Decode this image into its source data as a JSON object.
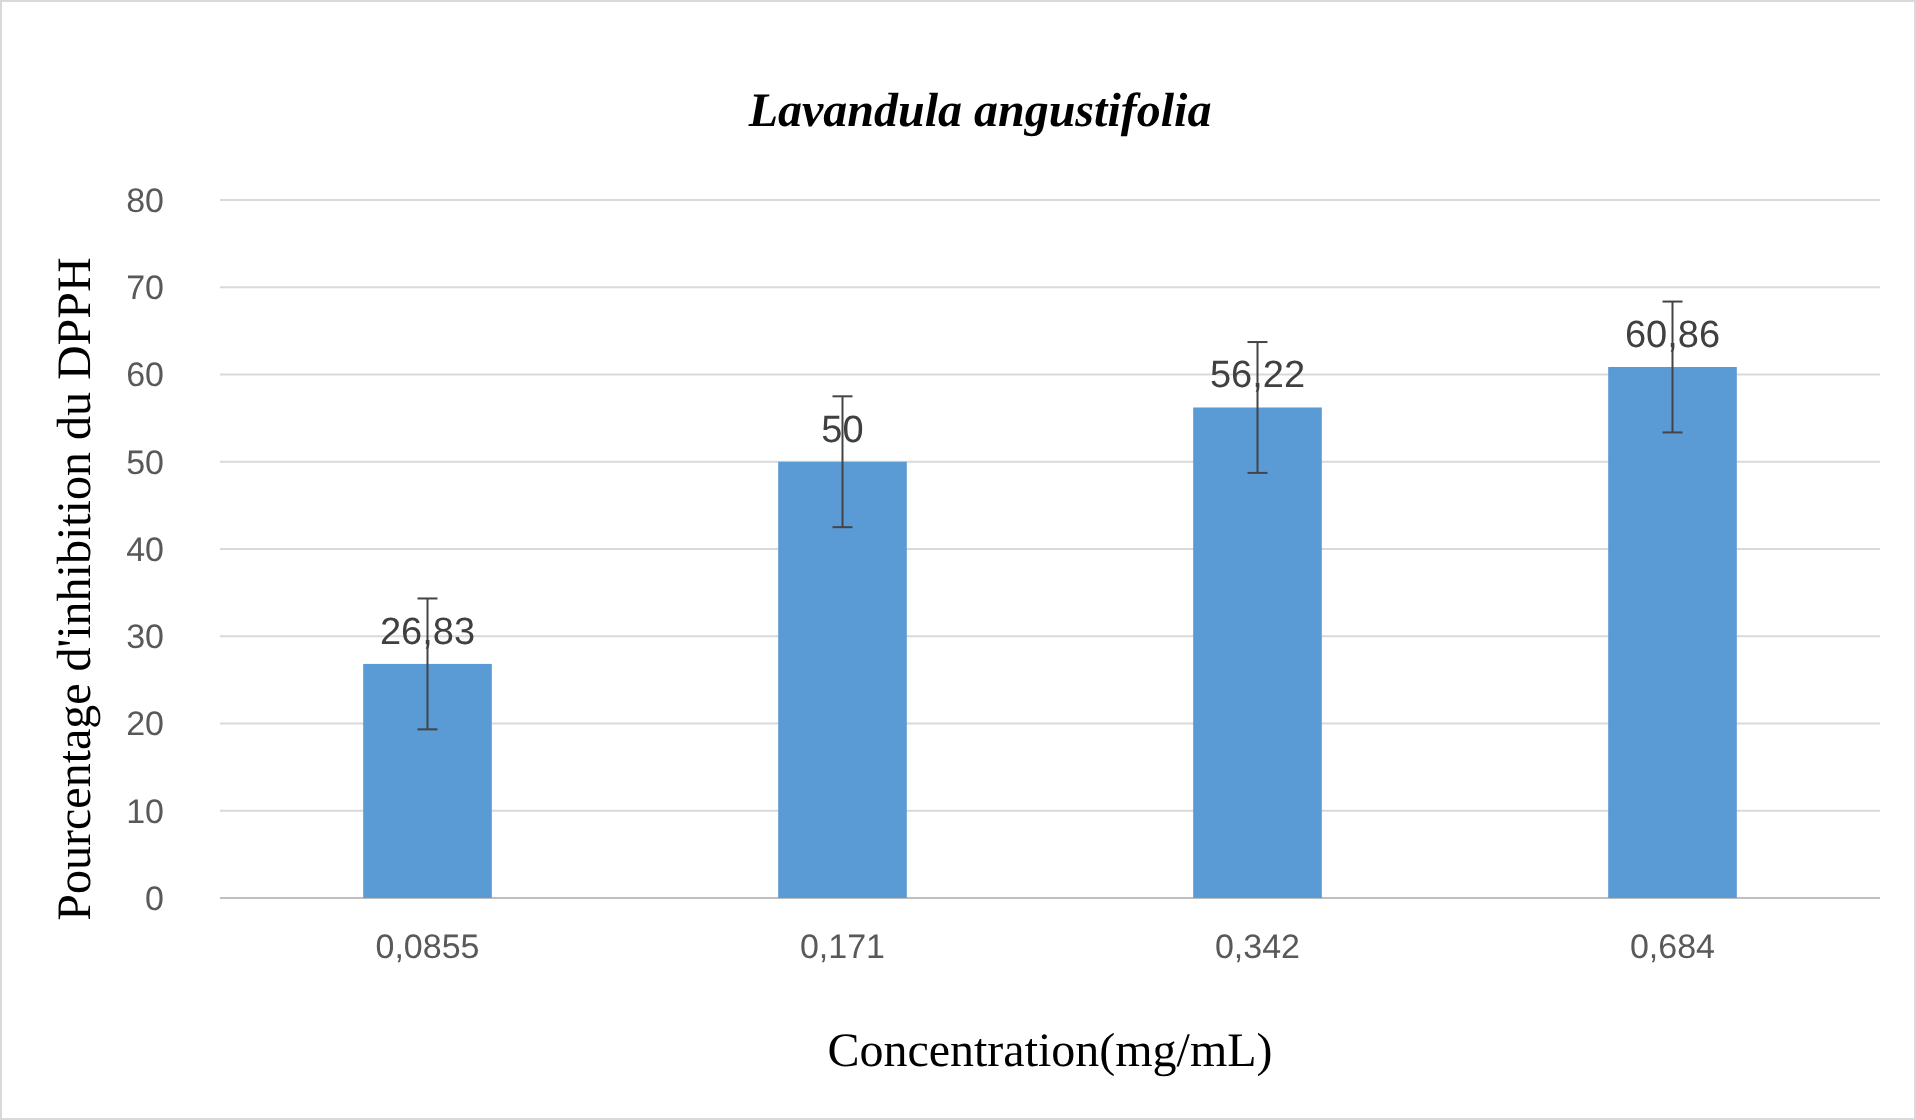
{
  "chart_data": {
    "type": "bar",
    "title": "Lavandula angustifolia",
    "xlabel": "Concentration(mg/mL)",
    "ylabel": "Pourcentage d'inhibition du DPPH",
    "categories": [
      "0,0855",
      "0,171",
      "0,342",
      "0,684"
    ],
    "values": [
      26.83,
      50,
      56.22,
      60.86
    ],
    "color": "#5b9bd5",
    "errors": [
      7.5,
      7.5,
      7.5,
      7.5
    ],
    "value_labels": [
      "26,83",
      "50",
      "56,22",
      "60,86"
    ],
    "ylim": [
      0,
      80
    ],
    "yticks": [
      0,
      10,
      20,
      30,
      40,
      50,
      60,
      70,
      80
    ],
    "grid": "y"
  }
}
